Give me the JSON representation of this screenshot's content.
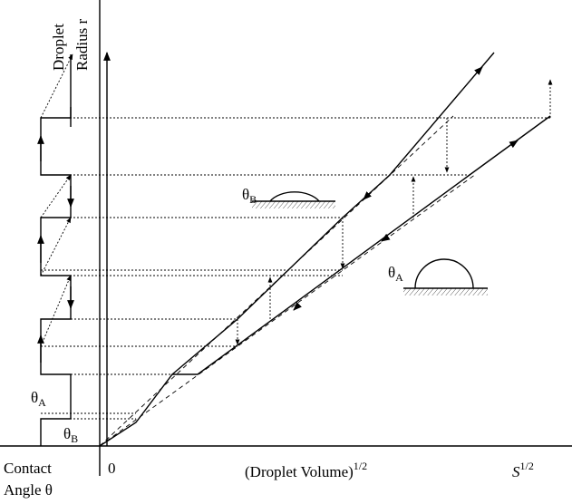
{
  "y_axis_label": [
    "Droplet",
    "Radius r"
  ],
  "x_axis_label": {
    "text": "(Droplet Volume)",
    "sup": "1/2"
  },
  "origin": "0",
  "s_label": {
    "text": "S",
    "sup": "1/2"
  },
  "angle_axis_label": [
    "Contact",
    "Angle θ"
  ],
  "angle_labels": [
    {
      "symbol": "θ",
      "sub": "A"
    },
    {
      "symbol": "θ",
      "sub": "B"
    },
    {
      "symbol": "θ",
      "sub": "B"
    },
    {
      "symbol": "θ",
      "sub": "A"
    }
  ]
}
